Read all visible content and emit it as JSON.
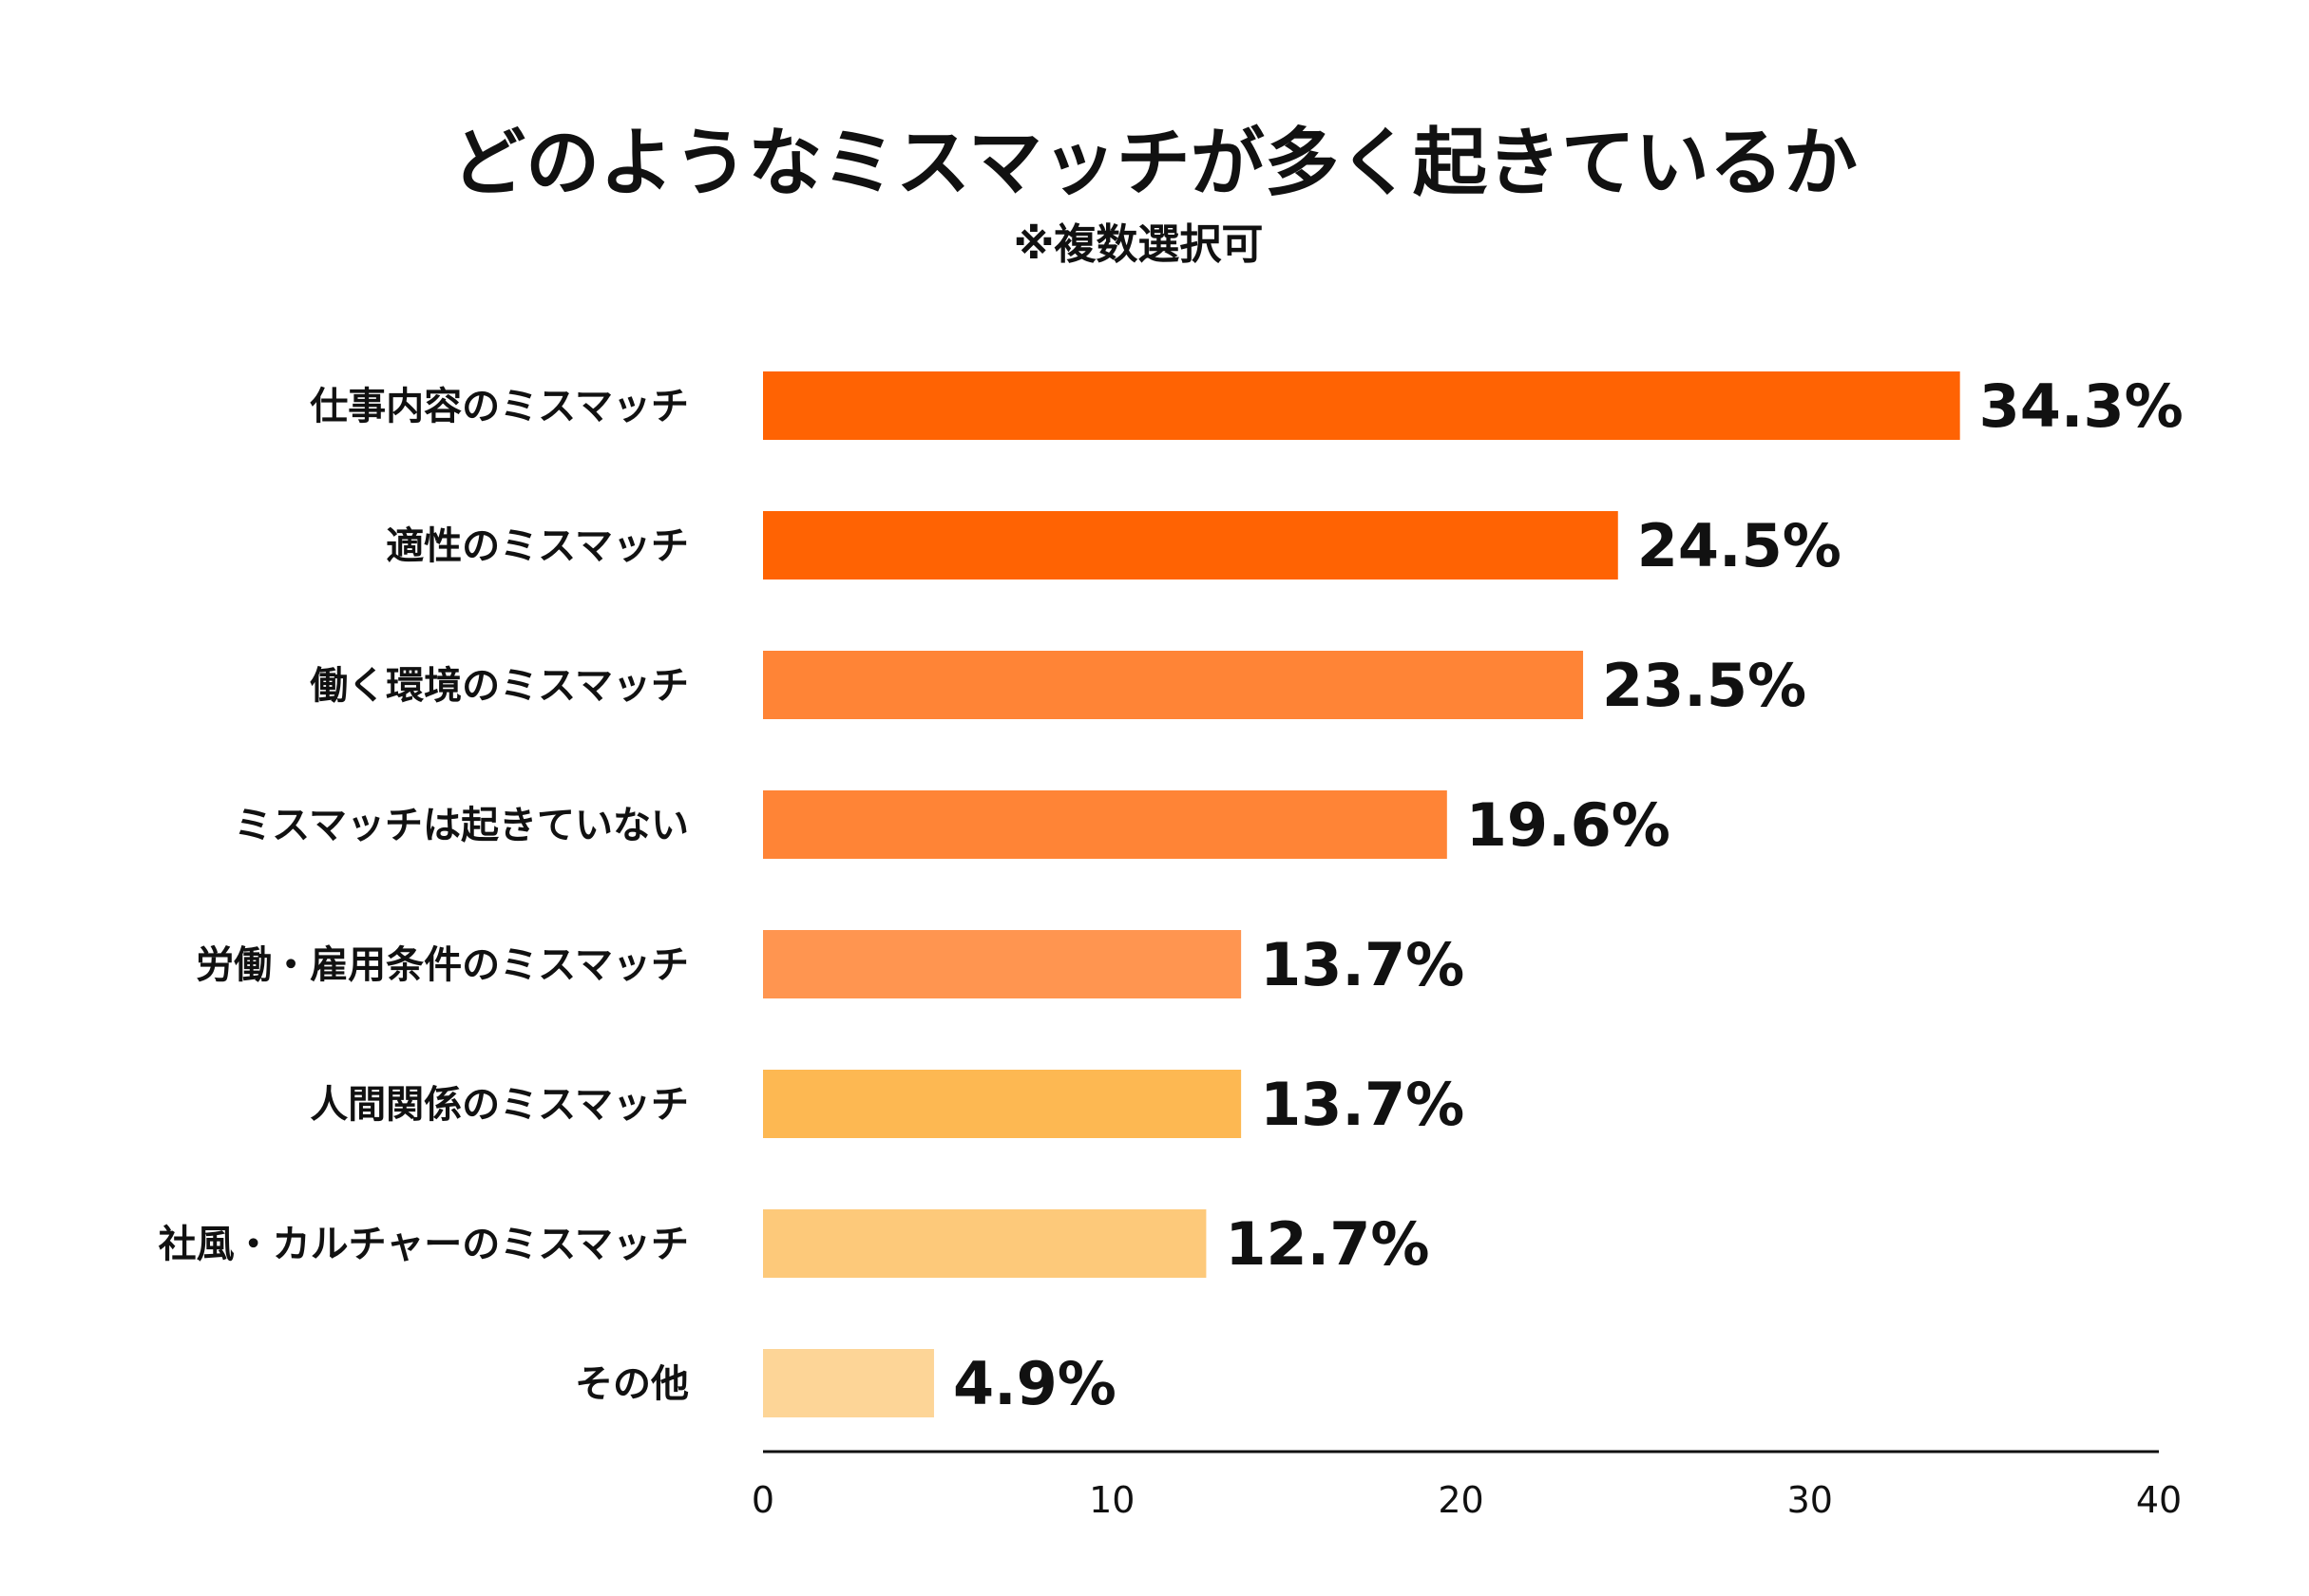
{
  "chart_data": {
    "type": "bar",
    "orientation": "horizontal",
    "title": "どのようなミスマッチが多く起きているか",
    "subtitle": "※複数選択可",
    "categories": [
      "仕事内容のミスマッチ",
      "適性のミスマッチ",
      "働く環境のミスマッチ",
      "ミスマッチは起きていない",
      "労働・雇用条件のミスマッチ",
      "人間関係のミスマッチ",
      "社風・カルチャーのミスマッチ",
      "その他"
    ],
    "values": [
      34.3,
      24.5,
      23.5,
      19.6,
      13.7,
      13.7,
      12.7,
      4.9
    ],
    "value_labels": [
      "34.3%",
      "24.5%",
      "23.5%",
      "19.6%",
      "13.7%",
      "13.7%",
      "12.7%",
      "4.9%"
    ],
    "colors": [
      "#FF6303",
      "#FF6303",
      "#FF8436",
      "#FF8436",
      "#FF9550",
      "#FDB852",
      "#FDC97A",
      "#FDD597"
    ],
    "xlim": [
      0,
      40
    ],
    "xticks": [
      0,
      10,
      20,
      30,
      40
    ],
    "xtick_labels": [
      "0",
      "10",
      "20",
      "30",
      "40"
    ],
    "xlabel": "",
    "ylabel": "",
    "grid": false,
    "legend": "none"
  }
}
